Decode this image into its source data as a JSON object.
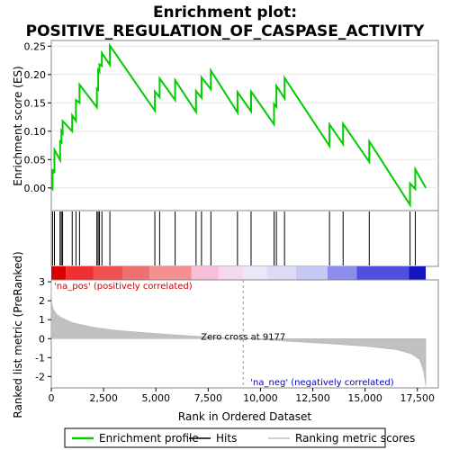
{
  "chart_data": {
    "type": "line",
    "title": "Enrichment plot:",
    "subtitle": "POSITIVE_REGULATION_OF_CASPASE_ACTIVITY",
    "es_panel": {
      "ylabel": "Enrichment score (ES)",
      "ylim": [
        -0.04,
        0.26
      ],
      "yticks": [
        0.0,
        0.05,
        0.1,
        0.15,
        0.2,
        0.25
      ],
      "ytick_labels": [
        "0.00",
        "0.05",
        "0.10",
        "0.15",
        "0.20",
        "0.25"
      ],
      "line_color": "#00cc00",
      "series": {
        "name": "Enrichment profile",
        "x": [
          0,
          60,
          60,
          150,
          150,
          420,
          420,
          480,
          480,
          540,
          540,
          1000,
          1000,
          1180,
          1180,
          1350,
          1350,
          2180,
          2180,
          2240,
          2240,
          2300,
          2300,
          2420,
          2420,
          2800,
          2800,
          4950,
          4950,
          5180,
          5180,
          5920,
          5920,
          6920,
          6920,
          7180,
          7180,
          7630,
          7630,
          8900,
          8900,
          9550,
          9550,
          10650,
          10650,
          10760,
          10760,
          11150,
          11150,
          13300,
          13300,
          13950,
          13950,
          15200,
          15200,
          17150,
          17150,
          17400,
          17400,
          17900
        ],
        "y": [
          0.0,
          -0.002,
          0.033,
          0.026,
          0.067,
          0.049,
          0.082,
          0.08,
          0.1,
          0.096,
          0.118,
          0.1,
          0.128,
          0.118,
          0.155,
          0.15,
          0.182,
          0.142,
          0.175,
          0.173,
          0.208,
          0.205,
          0.218,
          0.215,
          0.238,
          0.217,
          0.251,
          0.136,
          0.17,
          0.16,
          0.193,
          0.155,
          0.19,
          0.134,
          0.171,
          0.159,
          0.195,
          0.174,
          0.207,
          0.133,
          0.169,
          0.135,
          0.17,
          0.112,
          0.148,
          0.143,
          0.18,
          0.158,
          0.194,
          0.074,
          0.112,
          0.077,
          0.113,
          0.046,
          0.082,
          -0.03,
          0.008,
          -0.002,
          0.033,
          0.0
        ]
      }
    },
    "hits": {
      "positions": [
        60,
        150,
        420,
        480,
        540,
        1000,
        1180,
        1350,
        2180,
        2240,
        2300,
        2420,
        2800,
        4950,
        5180,
        5920,
        6920,
        7180,
        7630,
        8900,
        9550,
        10650,
        10760,
        11150,
        13300,
        13950,
        15200,
        17150,
        17400
      ]
    },
    "ranking_panel": {
      "ylabel": "Ranked list metric (PreRanked)",
      "xlabel": "Rank in Ordered Dataset",
      "xlim": [
        0,
        18500
      ],
      "ylim": [
        -2.6,
        3.1
      ],
      "yticks": [
        -2,
        -1,
        0,
        1,
        2,
        3
      ],
      "ytick_labels": [
        "-2",
        "-1",
        "0",
        "1",
        "2",
        "3"
      ],
      "xticks": [
        0,
        2500,
        5000,
        7500,
        10000,
        12500,
        15000,
        17500
      ],
      "xtick_labels": [
        "0",
        "2,500",
        "5,000",
        "7,500",
        "10,000",
        "12,500",
        "15,000",
        "17,500"
      ],
      "zero_cross": 9177,
      "zero_cross_label": "Zero cross at 9177",
      "pos_label": "'na_pos' (positively correlated)",
      "neg_label": "'na_neg' (negatively correlated)",
      "pos_label_color": "#cc0000",
      "neg_label_color": "#0000cc",
      "fill_color": "#c0c0c0",
      "metric_points": {
        "rank": [
          0,
          20,
          100,
          250,
          500,
          1000,
          2000,
          3000,
          5000,
          7000,
          9177,
          11000,
          13000,
          15000,
          16500,
          17200,
          17600,
          17800,
          17900
        ],
        "value": [
          3.1,
          1.9,
          1.55,
          1.3,
          1.1,
          0.85,
          0.6,
          0.45,
          0.27,
          0.12,
          0.0,
          -0.12,
          -0.25,
          -0.4,
          -0.58,
          -0.8,
          -1.1,
          -1.7,
          -2.5
        ]
      }
    },
    "colorbar": {
      "segments": [
        {
          "from": 0,
          "to": 700,
          "color": "#d80000"
        },
        {
          "from": 700,
          "to": 2000,
          "color": "#f03030"
        },
        {
          "from": 2000,
          "to": 3400,
          "color": "#f05050"
        },
        {
          "from": 3400,
          "to": 4700,
          "color": "#f07070"
        },
        {
          "from": 4700,
          "to": 6700,
          "color": "#f49090"
        },
        {
          "from": 6700,
          "to": 8000,
          "color": "#f8c0d8"
        },
        {
          "from": 8000,
          "to": 9177,
          "color": "#f4d8ec"
        },
        {
          "from": 9177,
          "to": 10300,
          "color": "#e8e8f8"
        },
        {
          "from": 10300,
          "to": 11700,
          "color": "#dcdcf8"
        },
        {
          "from": 11700,
          "to": 13200,
          "color": "#c8c8f4"
        },
        {
          "from": 13200,
          "to": 14600,
          "color": "#8c8cec"
        },
        {
          "from": 14600,
          "to": 17100,
          "color": "#5050e0"
        },
        {
          "from": 17100,
          "to": 17900,
          "color": "#1414c0"
        }
      ]
    },
    "legend": {
      "placement": "bottom",
      "items": [
        {
          "label": "Enrichment profile",
          "color": "#00cc00"
        },
        {
          "label": "Hits",
          "color": "#000000"
        },
        {
          "label": "Ranking metric scores",
          "color": "#c0c0c0"
        }
      ]
    }
  }
}
